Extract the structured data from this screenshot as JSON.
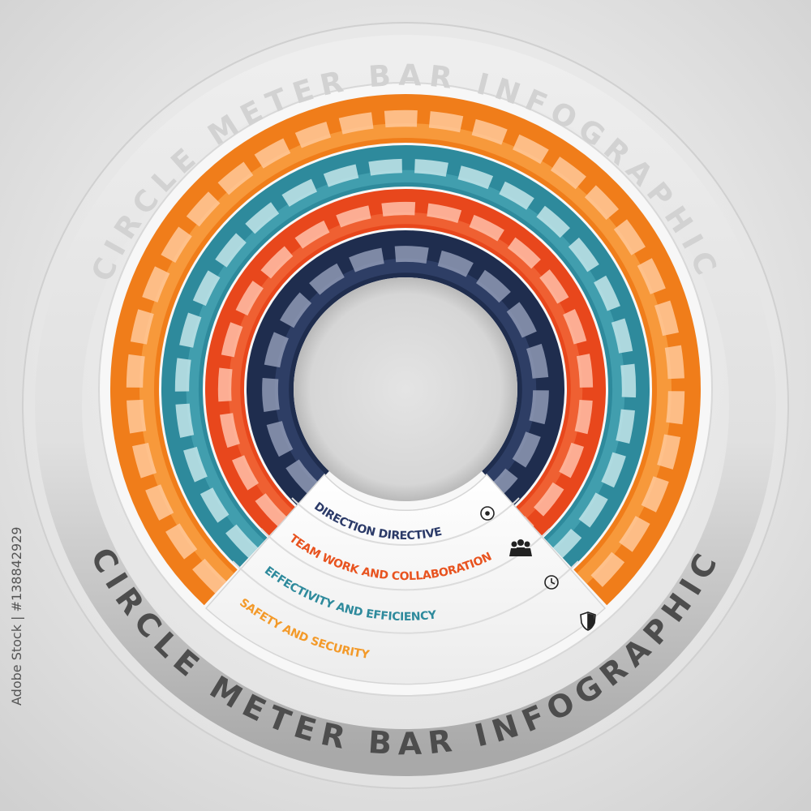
{
  "title_top": "CIRCLE METER BAR INFOGRAPHIC",
  "title_bottom": "CIRCLE METER BAR INFOGRAPHIC",
  "items": [
    {
      "label": "DIRECTION DIRECTIVE"
    },
    {
      "label": "TEAM WORK AND COLLABORATION"
    },
    {
      "label": "EFFECTIVITY AND EFFICIENCY"
    },
    {
      "label": "SAFETY AND SECURITY"
    }
  ],
  "watermark": "Adobe Stock | #138842929"
}
